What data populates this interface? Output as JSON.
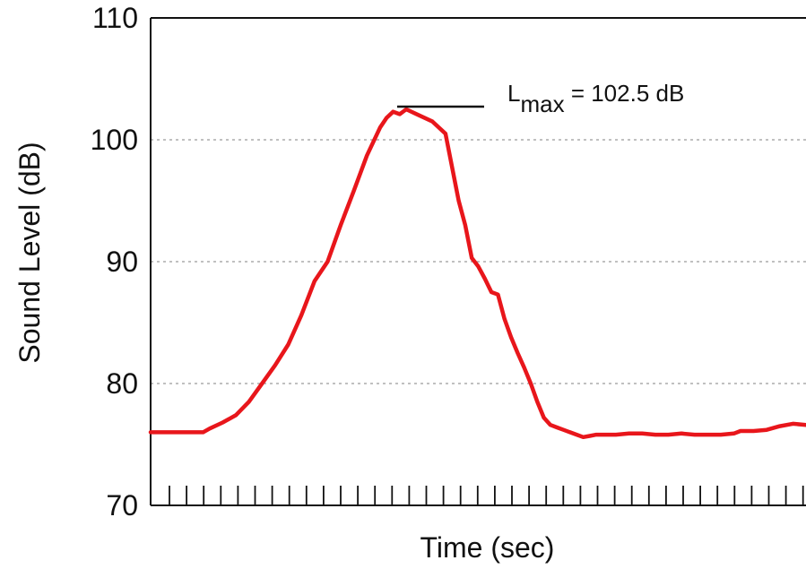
{
  "chart_data": {
    "type": "line",
    "title": "",
    "xlabel": "Time (sec)",
    "ylabel": "Sound Level (dB)",
    "ylim": [
      70,
      110
    ],
    "yticks": [
      70,
      80,
      90,
      100,
      110
    ],
    "grid": "y-dotted",
    "xlim": [
      0,
      100
    ],
    "series": [
      {
        "color": "#e8161b",
        "x": [
          0,
          4,
          8,
          9,
          11,
          13,
          15,
          17,
          19,
          21,
          23,
          25,
          27,
          29,
          31,
          33,
          35,
          36,
          37,
          38,
          39,
          41,
          43,
          45,
          47,
          48,
          49,
          50,
          51,
          52,
          53,
          54,
          55,
          56,
          57,
          58,
          59,
          60,
          61,
          62,
          63,
          64,
          65,
          66,
          67,
          68,
          69,
          70,
          71,
          73,
          75,
          77,
          79,
          81,
          83,
          85,
          87,
          89,
          90,
          92,
          94,
          96,
          98,
          100
        ],
        "values": [
          76.0,
          76.0,
          76.0,
          76.3,
          76.8,
          77.4,
          78.5,
          80.0,
          81.5,
          83.2,
          85.6,
          88.4,
          90.0,
          93.0,
          95.8,
          98.7,
          101.0,
          101.8,
          102.3,
          102.1,
          102.5,
          102.0,
          101.5,
          100.5,
          95.0,
          93.0,
          90.3,
          89.6,
          88.6,
          87.5,
          87.3,
          85.3,
          83.8,
          82.5,
          81.3,
          80.0,
          78.5,
          77.2,
          76.6,
          76.4,
          76.2,
          76.0,
          75.8,
          75.6,
          75.7,
          75.8,
          75.8,
          75.8,
          75.8,
          75.9,
          75.9,
          75.8,
          75.8,
          75.9,
          75.8,
          75.8,
          75.8,
          75.9,
          76.1,
          76.1,
          76.2,
          76.5,
          76.7,
          76.6
        ]
      }
    ],
    "annotations": [
      {
        "label": "L",
        "subscript": "max",
        "text": " = 102.5 dB",
        "y": 102.5
      }
    ]
  }
}
